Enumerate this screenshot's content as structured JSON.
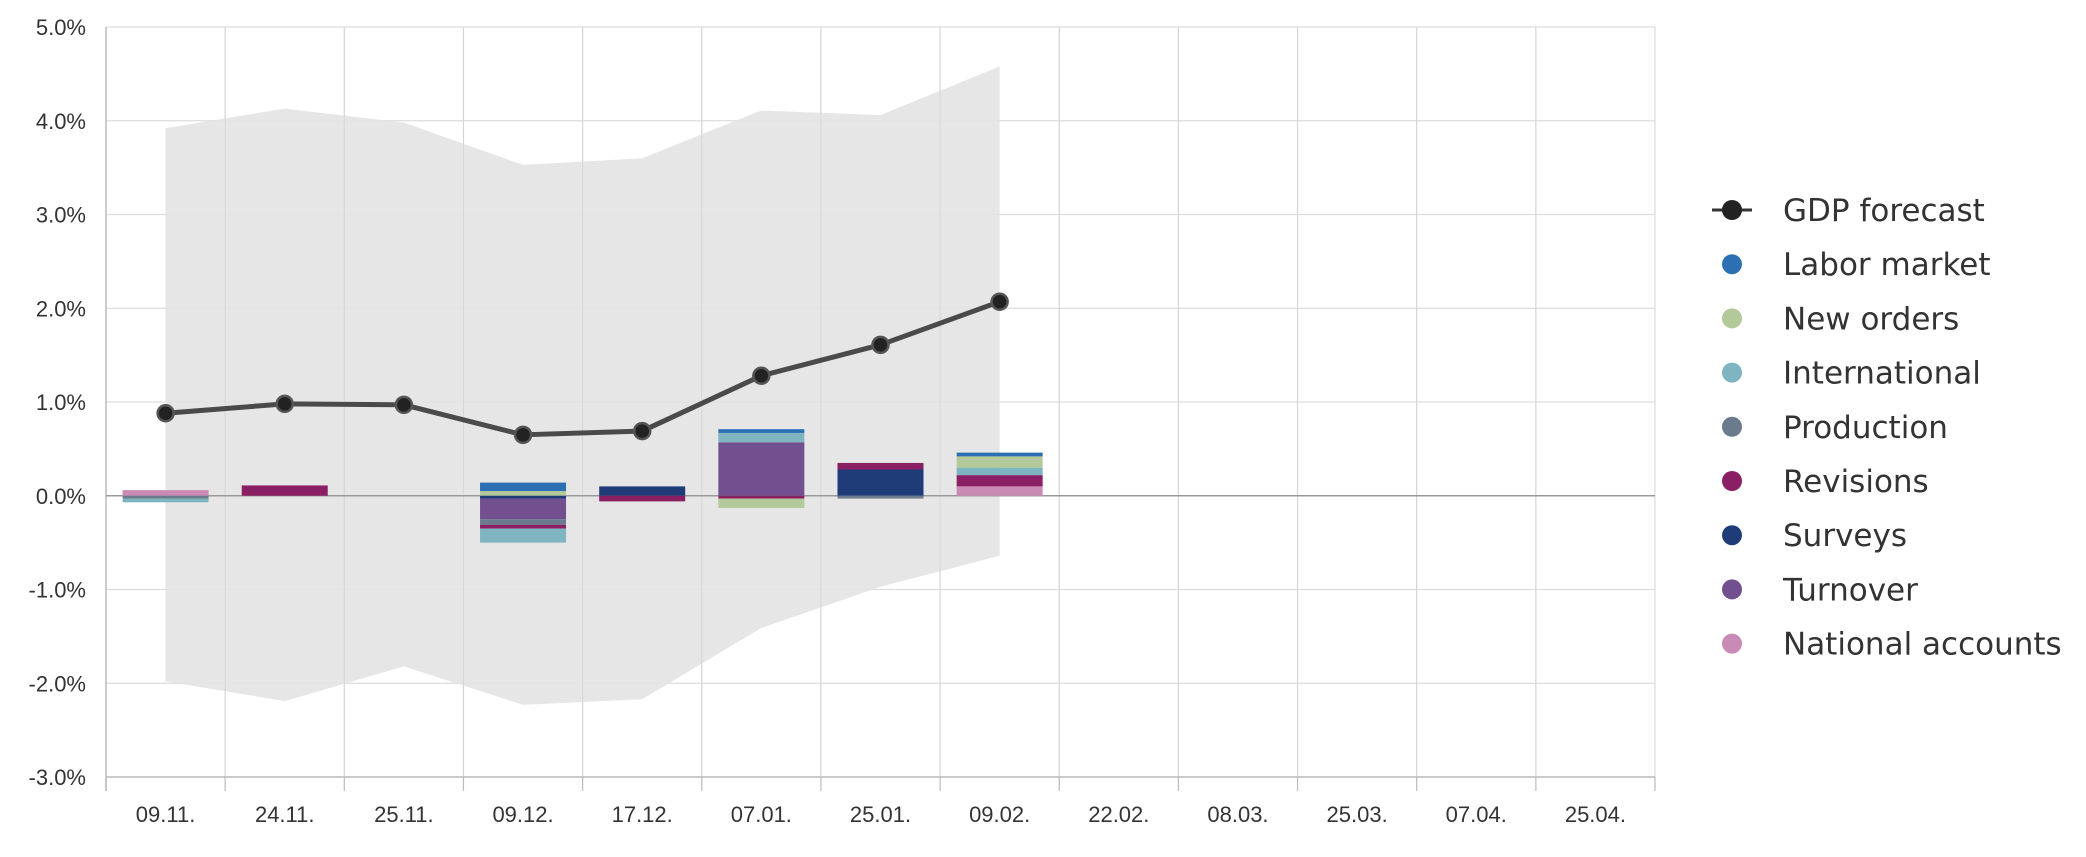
{
  "chart_data": {
    "type": "bar",
    "subtype": "stacked-bar-with-line-and-confidence-band",
    "title": "",
    "xlabel": "",
    "ylabel": "",
    "ylim": [
      -3.0,
      5.0
    ],
    "y_ticks": [
      5.0,
      4.0,
      3.0,
      2.0,
      1.0,
      0.0,
      -1.0,
      -2.0,
      -3.0
    ],
    "y_tick_labels": [
      "5.0%",
      "4.0%",
      "3.0%",
      "2.0%",
      "1.0%",
      "0.0%",
      "-1.0%",
      "-2.0%",
      "-3.0%"
    ],
    "categories": [
      "09.11.",
      "24.11.",
      "25.11.",
      "09.12.",
      "17.12.",
      "07.01.",
      "25.01.",
      "09.02.",
      "22.02.",
      "08.03.",
      "25.03.",
      "07.04.",
      "25.04."
    ],
    "grid": true,
    "legend_position": "right",
    "line_series": {
      "name": "GDP forecast",
      "color": "#333333",
      "values": [
        0.88,
        0.98,
        0.97,
        0.65,
        0.69,
        1.28,
        1.61,
        2.07,
        null,
        null,
        null,
        null,
        null
      ]
    },
    "band": {
      "color": "#e3e3e3",
      "upper": [
        3.92,
        4.13,
        3.98,
        3.53,
        3.6,
        4.11,
        4.06,
        4.58,
        null,
        null,
        null,
        null,
        null
      ],
      "lower": [
        -1.98,
        -2.19,
        -1.82,
        -2.23,
        -2.17,
        -1.41,
        -0.97,
        -0.64,
        null,
        null,
        null,
        null,
        null
      ]
    },
    "series": [
      {
        "name": "Labor market",
        "color": "#2c6fb3",
        "values": [
          0.0,
          0.0,
          0.0,
          0.09,
          0.0,
          0.04,
          0.0,
          0.04,
          null,
          null,
          null,
          null,
          null
        ]
      },
      {
        "name": "New orders",
        "color": "#b3c99a",
        "values": [
          0.0,
          0.0,
          0.0,
          0.05,
          0.0,
          -0.1,
          0.0,
          0.12,
          null,
          null,
          null,
          null,
          null
        ]
      },
      {
        "name": "International",
        "color": "#7fb4c1",
        "values": [
          -0.04,
          0.0,
          0.0,
          -0.15,
          0.0,
          0.1,
          0.0,
          0.08,
          null,
          null,
          null,
          null,
          null
        ]
      },
      {
        "name": "Production",
        "color": "#6b7a8c",
        "values": [
          -0.03,
          0.0,
          0.0,
          -0.06,
          0.0,
          0.0,
          -0.03,
          0.0,
          null,
          null,
          null,
          null,
          null
        ]
      },
      {
        "name": "Revisions",
        "color": "#8b1f63",
        "values": [
          0.0,
          0.11,
          0.0,
          -0.04,
          -0.06,
          -0.03,
          0.07,
          0.12,
          null,
          null,
          null,
          null,
          null
        ]
      },
      {
        "name": "Surveys",
        "color": "#1f3c78",
        "values": [
          0.0,
          0.0,
          0.0,
          -0.03,
          0.1,
          0.0,
          0.28,
          0.0,
          null,
          null,
          null,
          null,
          null
        ]
      },
      {
        "name": "Turnover",
        "color": "#72508f",
        "values": [
          0.0,
          0.0,
          0.0,
          -0.22,
          0.0,
          0.57,
          0.0,
          0.0,
          null,
          null,
          null,
          null,
          null
        ]
      },
      {
        "name": "National accounts",
        "color": "#c98ab6",
        "values": [
          0.06,
          0.0,
          0.0,
          0.0,
          0.0,
          0.0,
          0.0,
          0.1,
          null,
          null,
          null,
          null,
          null
        ]
      }
    ],
    "stack_order_positive": [
      "National accounts",
      "Turnover",
      "Surveys",
      "Revisions",
      "Production",
      "International",
      "New orders",
      "Labor market"
    ],
    "stack_order_negative": [
      "Surveys",
      "Turnover",
      "Production",
      "Revisions",
      "International",
      "New orders",
      "Labor market",
      "National accounts"
    ]
  },
  "legend": {
    "items": [
      {
        "label": "GDP forecast",
        "color": "#222222",
        "icon": "line-dot"
      },
      {
        "label": "Labor market",
        "color": "#2c6fb3",
        "icon": "dot"
      },
      {
        "label": "New orders",
        "color": "#b3c99a",
        "icon": "dot"
      },
      {
        "label": "International",
        "color": "#7fb4c1",
        "icon": "dot"
      },
      {
        "label": "Production",
        "color": "#6b7a8c",
        "icon": "dot"
      },
      {
        "label": "Revisions",
        "color": "#8b1f63",
        "icon": "dot"
      },
      {
        "label": "Surveys",
        "color": "#1f3c78",
        "icon": "dot"
      },
      {
        "label": "Turnover",
        "color": "#72508f",
        "icon": "dot"
      },
      {
        "label": "National accounts",
        "color": "#c98ab6",
        "icon": "dot"
      }
    ]
  }
}
